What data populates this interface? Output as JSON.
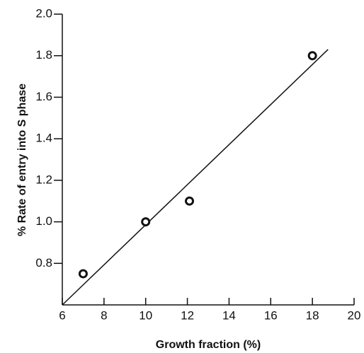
{
  "chart_data": {
    "type": "scatter",
    "x_label": "Growth fraction (%)",
    "y_label": "% Rate of entry into S phase",
    "x": [
      7,
      10,
      12.1,
      18
    ],
    "values": [
      0.75,
      1.0,
      1.1,
      1.8
    ],
    "color": "#111111",
    "trend_line": {
      "x": [
        6,
        18.75
      ],
      "y": [
        0.6,
        1.83
      ]
    },
    "xlim": [
      6,
      20
    ],
    "xticks": [
      6,
      8,
      10,
      12,
      14,
      16,
      18,
      20
    ],
    "ylim": [
      0.6,
      2.0
    ],
    "yticks": [
      0.8,
      {
        "value": 1,
        "label": "1.0"
      },
      1.2,
      1.4,
      1.6,
      1.8,
      {
        "value": 2,
        "label": "2.0"
      }
    ],
    "grid": false
  }
}
